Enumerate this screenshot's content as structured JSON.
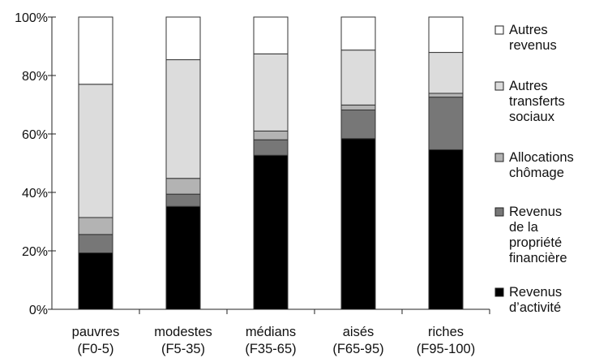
{
  "chart_data": {
    "type": "bar",
    "stacked": true,
    "categories": [
      [
        "pauvres",
        "(F0-5)"
      ],
      [
        "modestes",
        "(F5-35)"
      ],
      [
        "médians",
        "(F35-65)"
      ],
      [
        "aisés",
        "(F65-95)"
      ],
      [
        "riches",
        "(F95-100)"
      ]
    ],
    "y_ticks": [
      "0%",
      "20%",
      "40%",
      "60%",
      "80%",
      "100%"
    ],
    "ylim": [
      0,
      100
    ],
    "grid": false,
    "legend_position": "right",
    "series": [
      {
        "name": [
          "Revenus",
          "d’activité"
        ],
        "color": "#000000",
        "values": [
          19.3,
          35.2,
          52.7,
          58.4,
          54.6
        ]
      },
      {
        "name": [
          "Revenus",
          "de la",
          "propriété",
          "financière"
        ],
        "color": "#777777",
        "values": [
          6.3,
          4.2,
          5.3,
          9.8,
          18.0
        ]
      },
      {
        "name": [
          "Allocations",
          "chômage"
        ],
        "color": "#b3b3b3",
        "values": [
          5.8,
          5.4,
          3.0,
          1.7,
          1.3
        ]
      },
      {
        "name": [
          "Autres",
          "transferts",
          "sociaux"
        ],
        "color": "#dcdcdc",
        "values": [
          45.6,
          40.6,
          26.4,
          18.8,
          14.0
        ]
      },
      {
        "name": [
          "Autres",
          "revenus"
        ],
        "color": "#ffffff",
        "values": [
          23.0,
          14.6,
          12.6,
          11.3,
          12.1
        ]
      }
    ]
  }
}
